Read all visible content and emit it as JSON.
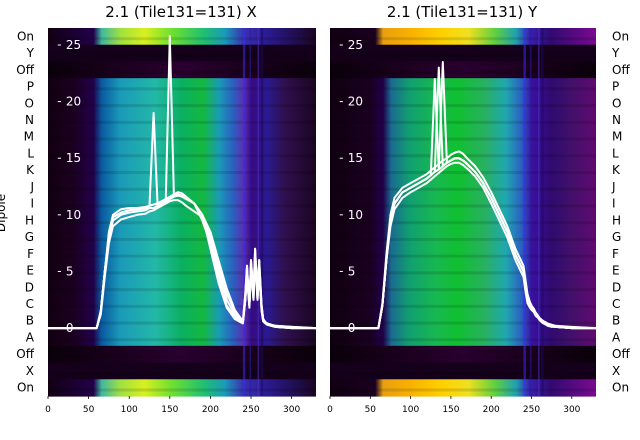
{
  "chart_data": [
    {
      "type": "heatmap",
      "title": "2.1 (Tile131=131) X",
      "ylabel": "Dipole",
      "rows": [
        "On",
        "Y",
        "Off",
        "P",
        "O",
        "N",
        "M",
        "L",
        "K",
        "J",
        "I",
        "H",
        "G",
        "F",
        "E",
        "D",
        "C",
        "B",
        "A",
        "Off",
        "X",
        "On"
      ],
      "x_ticks": [
        0,
        50,
        100,
        150,
        200,
        250,
        300
      ],
      "xlim": [
        0,
        330
      ],
      "line_overlay": {
        "type": "line",
        "y_ticks": [
          0,
          5,
          10,
          15,
          20,
          25
        ],
        "ylim": [
          -6,
          26.5
        ],
        "x": [
          0,
          60,
          65,
          70,
          75,
          80,
          90,
          100,
          110,
          120,
          125,
          130,
          135,
          140,
          145,
          150,
          155,
          160,
          165,
          170,
          180,
          190,
          200,
          210,
          220,
          230,
          240,
          243,
          245,
          248,
          250,
          253,
          255,
          258,
          260,
          263,
          265,
          268,
          270,
          275,
          280,
          300,
          330
        ],
        "series": [
          {
            "values": [
              0,
              0,
              1.5,
              5,
              8,
              9.5,
              10,
              10.2,
              10.3,
              10.4,
              10.6,
              10.6,
              10.8,
              11,
              11.2,
              11.4,
              11.6,
              11.7,
              11.6,
              11.4,
              11,
              10,
              8,
              5.5,
              3,
              1.5,
              0.6,
              3,
              5.5,
              2,
              6,
              3,
              7,
              3,
              6,
              2,
              0.8,
              0.5,
              0.4,
              0.3,
              0.2,
              0.1,
              0
            ]
          },
          {
            "values": [
              0,
              0,
              1.5,
              5,
              8.5,
              10,
              10.5,
              10.6,
              10.6,
              10.7,
              10.8,
              10.9,
              11,
              11.2,
              11.4,
              11.6,
              11.8,
              12,
              11.9,
              11.6,
              11,
              9.5,
              7.5,
              5,
              2.5,
              1.2,
              0.5,
              2.5,
              5,
              2,
              5.5,
              2.5,
              6,
              2.5,
              5,
              1.5,
              0.6,
              0.4,
              0.3,
              0.2,
              0.1,
              0,
              0
            ]
          },
          {
            "values": [
              0,
              0,
              1.2,
              4.5,
              7.5,
              9,
              9.6,
              9.8,
              10,
              10.1,
              10.3,
              10.4,
              10.6,
              10.8,
              11,
              11.2,
              11.3,
              11.3,
              11.1,
              10.8,
              10.3,
              9.8,
              7.5,
              4.5,
              2,
              1.0,
              0.5,
              2.5,
              4.5,
              1.8,
              5,
              2.5,
              6,
              2.5,
              5,
              1.5,
              0.6,
              0.4,
              0.3,
              0.2,
              0.1,
              0,
              0
            ]
          },
          {
            "values": [
              0,
              0,
              1.5,
              5,
              8,
              9.8,
              10.2,
              10.4,
              10.5,
              10.6,
              10.8,
              19,
              10.8,
              11,
              11.2,
              11.5,
              11.7,
              11.8,
              11.7,
              11.5,
              11,
              10,
              7,
              4,
              1.8,
              0.8,
              0.4,
              2.5,
              4.5,
              2,
              5.5,
              3,
              6.5,
              3,
              5.5,
              1.8,
              0.6,
              0.4,
              0.3,
              0.2,
              0.1,
              0,
              0
            ]
          },
          {
            "values": [
              0,
              0,
              1.5,
              5,
              8,
              9.8,
              10.2,
              10.4,
              10.5,
              10.6,
              10.8,
              10.9,
              11,
              11.2,
              11.4,
              25.8,
              11.7,
              11.8,
              11.7,
              11.5,
              11,
              10,
              8.5,
              6,
              3.5,
              1.6,
              0.6,
              3,
              5.5,
              2,
              6,
              3,
              7,
              3,
              6,
              2,
              0.8,
              0.5,
              0.4,
              0.3,
              0.2,
              0.1,
              0
            ]
          }
        ]
      }
    },
    {
      "type": "heatmap",
      "title": "2.1 (Tile131=131) Y",
      "rows": [
        "On",
        "Y",
        "Off",
        "P",
        "O",
        "N",
        "M",
        "L",
        "K",
        "J",
        "I",
        "H",
        "G",
        "F",
        "E",
        "D",
        "C",
        "B",
        "A",
        "Off",
        "X",
        "On"
      ],
      "x_ticks": [
        0,
        50,
        100,
        150,
        200,
        250,
        300
      ],
      "xlim": [
        0,
        330
      ],
      "line_overlay": {
        "type": "line",
        "y_ticks": [
          0,
          5,
          10,
          15,
          20,
          25
        ],
        "ylim": [
          -6,
          26.5
        ],
        "x": [
          0,
          60,
          65,
          70,
          75,
          80,
          90,
          100,
          110,
          120,
          125,
          130,
          135,
          140,
          145,
          150,
          155,
          160,
          165,
          170,
          180,
          190,
          200,
          210,
          220,
          230,
          240,
          243,
          245,
          248,
          250,
          253,
          255,
          258,
          260,
          263,
          265,
          268,
          270,
          275,
          280,
          300,
          330
        ],
        "series": [
          {
            "values": [
              0,
              0,
              2,
              6,
              9.5,
              11,
              12,
              12.4,
              12.8,
              13.2,
              13.5,
              13.8,
              14,
              14.3,
              14.6,
              14.8,
              15,
              15,
              14.8,
              14.5,
              13.8,
              12.8,
              11.5,
              10,
              8.5,
              6.5,
              5,
              3.5,
              2.5,
              2,
              1.8,
              1.5,
              1.2,
              1.0,
              0.8,
              0.6,
              0.5,
              0.4,
              0.3,
              0.2,
              0.1,
              0,
              0
            ]
          },
          {
            "values": [
              0,
              0,
              2,
              6,
              9,
              10.5,
              11.5,
              12,
              12.4,
              12.8,
              13.1,
              13.4,
              13.7,
              14,
              14.3,
              14.5,
              14.6,
              14.6,
              14.4,
              14.1,
              13.4,
              12.4,
              11,
              9.5,
              8,
              6,
              4.5,
              3,
              2.2,
              1.8,
              1.6,
              1.4,
              1.1,
              0.9,
              0.7,
              0.5,
              0.4,
              0.3,
              0.2,
              0.1,
              0.1,
              0,
              0
            ]
          },
          {
            "values": [
              0,
              0,
              2.2,
              6.5,
              10,
              11.5,
              12.4,
              12.8,
              13.2,
              13.6,
              13.9,
              14.2,
              14.5,
              14.8,
              15,
              15.3,
              15.5,
              15.6,
              15.4,
              15,
              14.3,
              13.3,
              12,
              10.5,
              9,
              7,
              5.5,
              4,
              3,
              2.3,
              2,
              1.7,
              1.4,
              1.1,
              0.9,
              0.7,
              0.6,
              0.5,
              0.4,
              0.3,
              0.2,
              0.1,
              0
            ]
          },
          {
            "values": [
              0,
              0,
              2,
              6,
              9.5,
              11,
              12,
              12.4,
              12.8,
              13.2,
              13.5,
              22,
              14,
              14.3,
              14.6,
              14.8,
              15,
              15,
              14.8,
              14.5,
              13.8,
              12.8,
              11.5,
              10,
              8.5,
              6.5,
              5,
              3.5,
              2.5,
              2,
              1.8,
              1.5,
              1.2,
              1.0,
              0.8,
              0.6,
              0.5,
              0.4,
              0.3,
              0.2,
              0.1,
              0,
              0
            ]
          },
          {
            "values": [
              0,
              0,
              2,
              6,
              9.5,
              11,
              12,
              12.4,
              12.8,
              13.2,
              13.5,
              13.8,
              23,
              14.3,
              14.6,
              14.8,
              15,
              15,
              14.8,
              14.5,
              13.8,
              12.8,
              11.5,
              10,
              8.5,
              6.5,
              5,
              3.5,
              2.5,
              2,
              1.8,
              1.5,
              1.2,
              1.0,
              0.8,
              0.6,
              0.5,
              0.4,
              0.3,
              0.2,
              0.1,
              0,
              0
            ]
          },
          {
            "values": [
              0,
              0,
              2,
              6,
              9.5,
              11,
              12,
              12.4,
              12.8,
              13.2,
              13.5,
              13.8,
              14,
              23.5,
              14.6,
              14.8,
              15,
              15,
              14.8,
              14.5,
              13.8,
              12.8,
              11.5,
              10,
              8.5,
              6.5,
              5,
              3.5,
              2.5,
              2,
              1.8,
              1.5,
              1.2,
              1.0,
              0.8,
              0.6,
              0.5,
              0.4,
              0.3,
              0.2,
              0.1,
              0,
              0
            ]
          }
        ]
      }
    }
  ]
}
